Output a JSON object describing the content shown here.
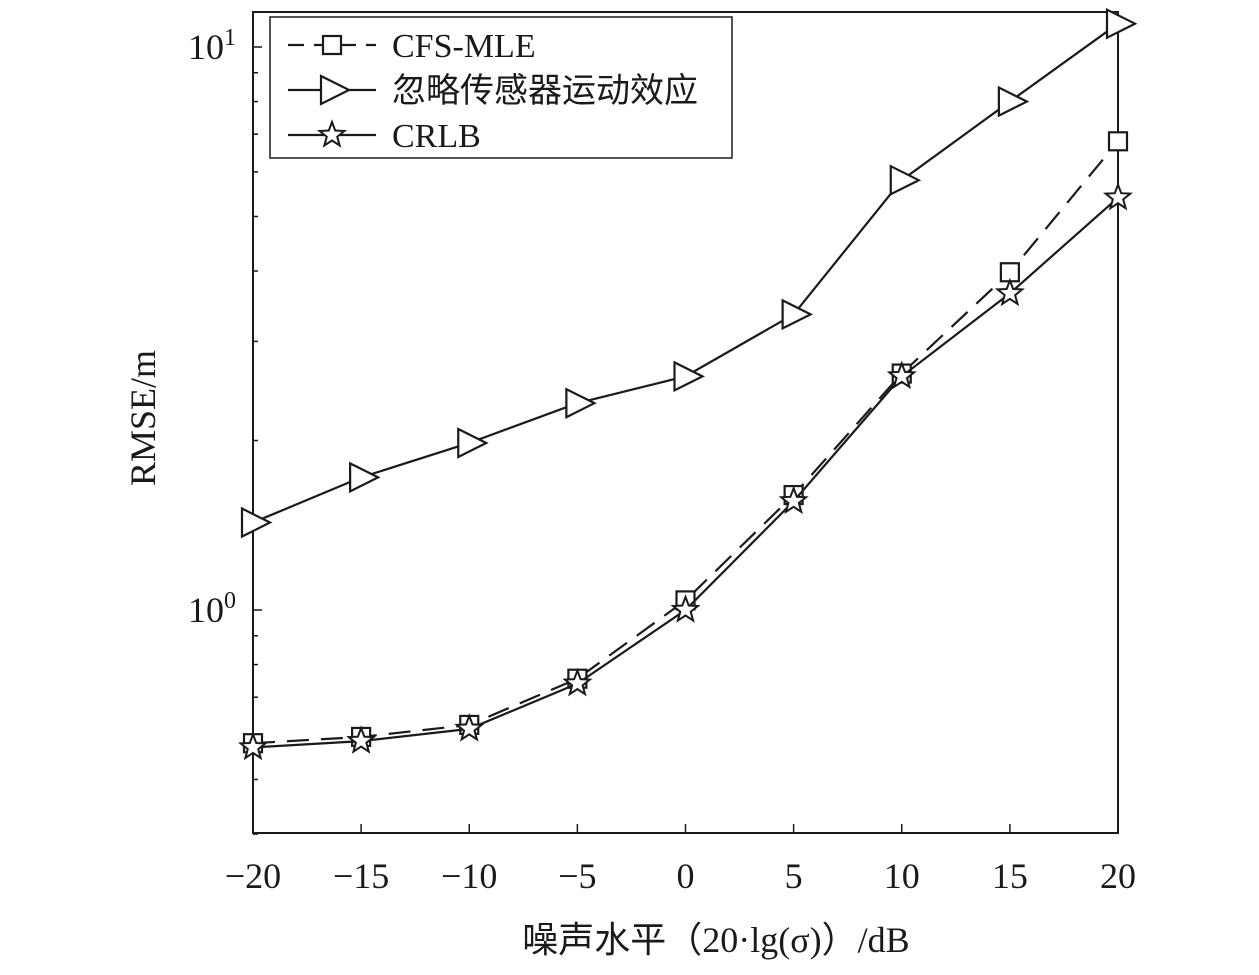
{
  "chart_data": {
    "type": "line",
    "xlabel": "噪声水平（20·lg(σ)）/dB",
    "ylabel": "RMSE/m",
    "x": [
      -20,
      -15,
      -10,
      -5,
      0,
      5,
      10,
      15,
      20
    ],
    "xlim": [
      -20,
      20
    ],
    "ylim": [
      0.4,
      12
    ],
    "yscale": "log",
    "x_ticks": [
      {
        "value": -20,
        "label": "−20"
      },
      {
        "value": -15,
        "label": "−15"
      },
      {
        "value": -10,
        "label": "−10"
      },
      {
        "value": -5,
        "label": "−5"
      },
      {
        "value": 0,
        "label": "0"
      },
      {
        "value": 5,
        "label": "5"
      },
      {
        "value": 10,
        "label": "10"
      },
      {
        "value": 15,
        "label": "15"
      },
      {
        "value": 20,
        "label": "20"
      }
    ],
    "y_ticks": [
      {
        "value": 1,
        "base": "10",
        "exp": "0"
      },
      {
        "value": 10,
        "base": "10",
        "exp": "1"
      }
    ],
    "grid": false,
    "legend_position": "top-left",
    "series": [
      {
        "name": "CFS-MLE",
        "line": "dashed",
        "marker": "square",
        "color": "#1a1a1a",
        "values": [
          0.58,
          0.595,
          0.625,
          0.755,
          1.04,
          1.6,
          2.63,
          3.98,
          6.8
        ]
      },
      {
        "name": "忽略传感器运动效应",
        "line": "solid",
        "marker": "triangle-right",
        "color": "#1a1a1a",
        "values": [
          1.43,
          1.72,
          1.98,
          2.33,
          2.6,
          3.35,
          5.8,
          8.0,
          11.0
        ]
      },
      {
        "name": "CRLB",
        "line": "solid",
        "marker": "star",
        "color": "#1a1a1a",
        "values": [
          0.57,
          0.585,
          0.615,
          0.74,
          1.0,
          1.56,
          2.6,
          3.65,
          5.4
        ]
      }
    ]
  }
}
